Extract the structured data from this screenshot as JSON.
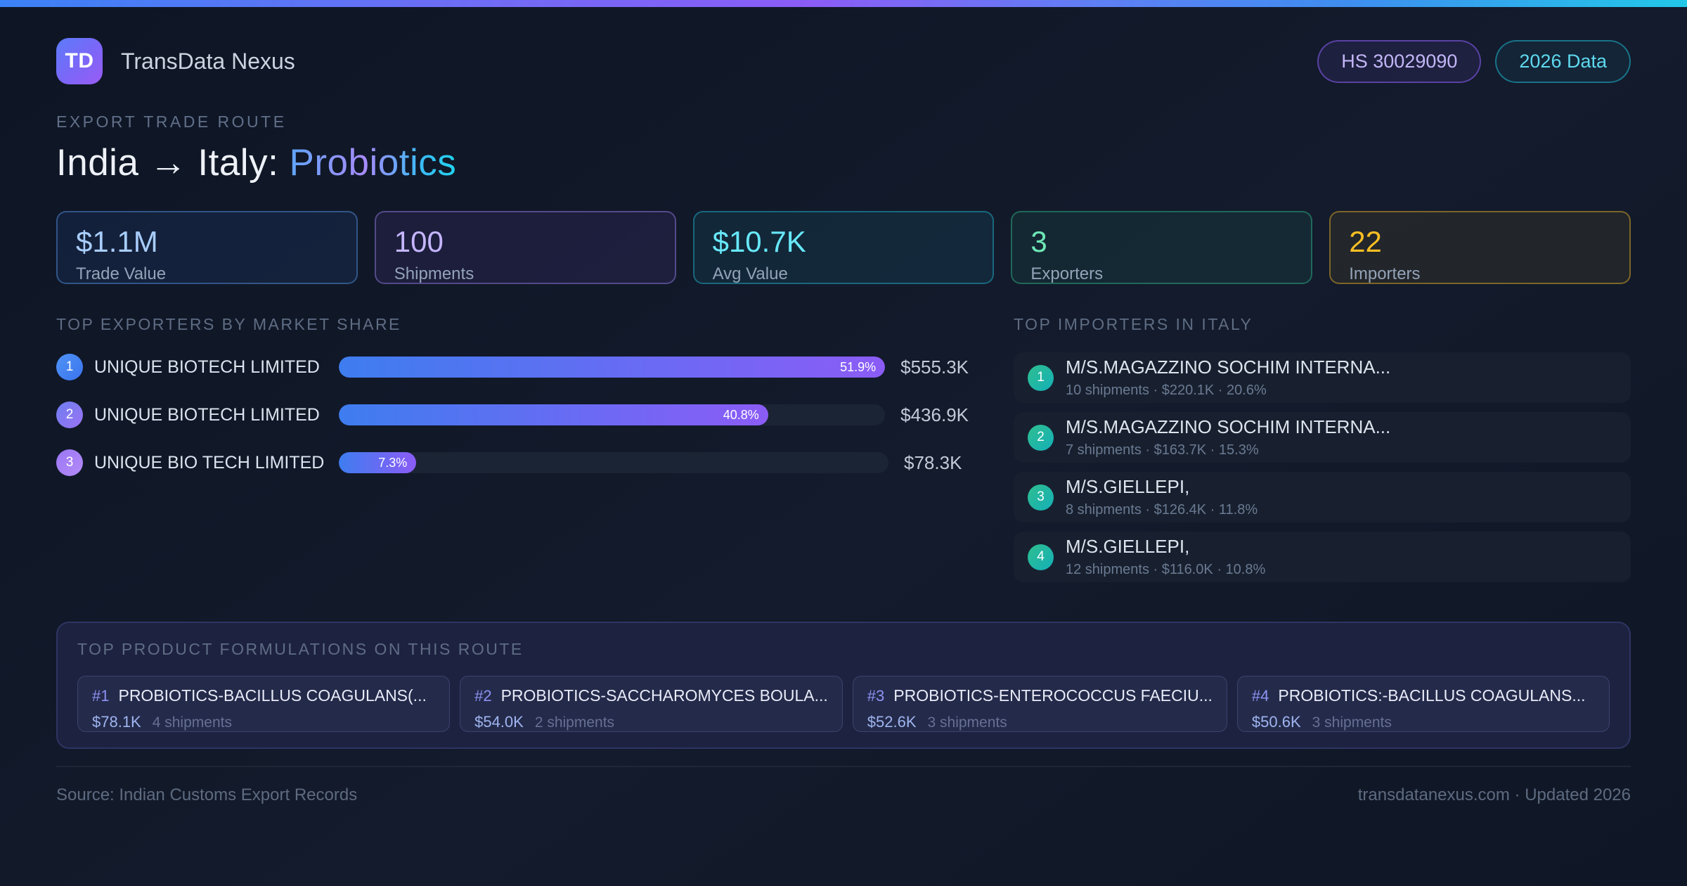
{
  "brand": {
    "logo_text": "TD",
    "name": "TransData Nexus"
  },
  "header_badges": [
    {
      "label": "HS 30029090"
    },
    {
      "label": "2026 Data"
    }
  ],
  "hero": {
    "eyebrow": "EXPORT TRADE ROUTE",
    "title_prefix": "India → Italy:",
    "title_highlight": "Probiotics"
  },
  "stats": [
    {
      "value": "$1.1M",
      "label": "Trade Value"
    },
    {
      "value": "100",
      "label": "Shipments"
    },
    {
      "value": "$10.7K",
      "label": "Avg Value"
    },
    {
      "value": "3",
      "label": "Exporters"
    },
    {
      "value": "22",
      "label": "Importers"
    }
  ],
  "exporters": {
    "title": "TOP EXPORTERS BY MARKET SHARE",
    "max_share_pct": 51.9,
    "items": [
      {
        "rank": "1",
        "name": "UNIQUE BIOTECH LIMITED",
        "share_pct": 51.9,
        "share_label": "51.9%",
        "value": "$555.3K",
        "bar_width": "100%"
      },
      {
        "rank": "2",
        "name": "UNIQUE BIOTECH LIMITED",
        "share_pct": 40.8,
        "share_label": "40.8%",
        "value": "$436.9K",
        "bar_width": "78.6%"
      },
      {
        "rank": "3",
        "name": "UNIQUE BIO TECH LIMITED",
        "share_pct": 7.3,
        "share_label": "7.3%",
        "value": "$78.3K",
        "bar_width": "14.1%"
      }
    ]
  },
  "importers": {
    "title": "TOP IMPORTERS IN ITALY",
    "items": [
      {
        "rank": "1",
        "name": "M/S.MAGAZZINO SOCHIM INTERNA...",
        "detail": "10 shipments · $220.1K · 20.6%"
      },
      {
        "rank": "2",
        "name": "M/S.MAGAZZINO SOCHIM INTERNA...",
        "detail": "7 shipments · $163.7K · 15.3%"
      },
      {
        "rank": "3",
        "name": "M/S.GIELLEPI,",
        "detail": "8 shipments · $126.4K · 11.8%"
      },
      {
        "rank": "4",
        "name": "M/S.GIELLEPI,",
        "detail": "12 shipments · $116.0K · 10.8%"
      }
    ]
  },
  "products": {
    "title": "TOP PRODUCT FORMULATIONS ON THIS ROUTE",
    "items": [
      {
        "rank": "#1",
        "name": "PROBIOTICS-BACILLUS COAGULANS(...",
        "value": "$78.1K",
        "shipments": "4 shipments"
      },
      {
        "rank": "#2",
        "name": "PROBIOTICS-SACCHAROMYCES BOULA...",
        "value": "$54.0K",
        "shipments": "2 shipments"
      },
      {
        "rank": "#3",
        "name": "PROBIOTICS-ENTEROCOCCUS FAECIU...",
        "value": "$52.6K",
        "shipments": "3 shipments"
      },
      {
        "rank": "#4",
        "name": "PROBIOTICS:-BACILLUS COAGULANS...",
        "value": "$50.6K",
        "shipments": "3 shipments"
      }
    ]
  },
  "footer": {
    "source": "Source: Indian Customs Export Records",
    "site": "transdatanexus.com · Updated 2026"
  },
  "colors": {
    "accent_blue": "#3b82f6",
    "accent_purple": "#8b5cf6",
    "accent_cyan": "#22d3ee",
    "accent_green": "#34d399",
    "accent_amber": "#fbbf24",
    "background": "#101828"
  }
}
